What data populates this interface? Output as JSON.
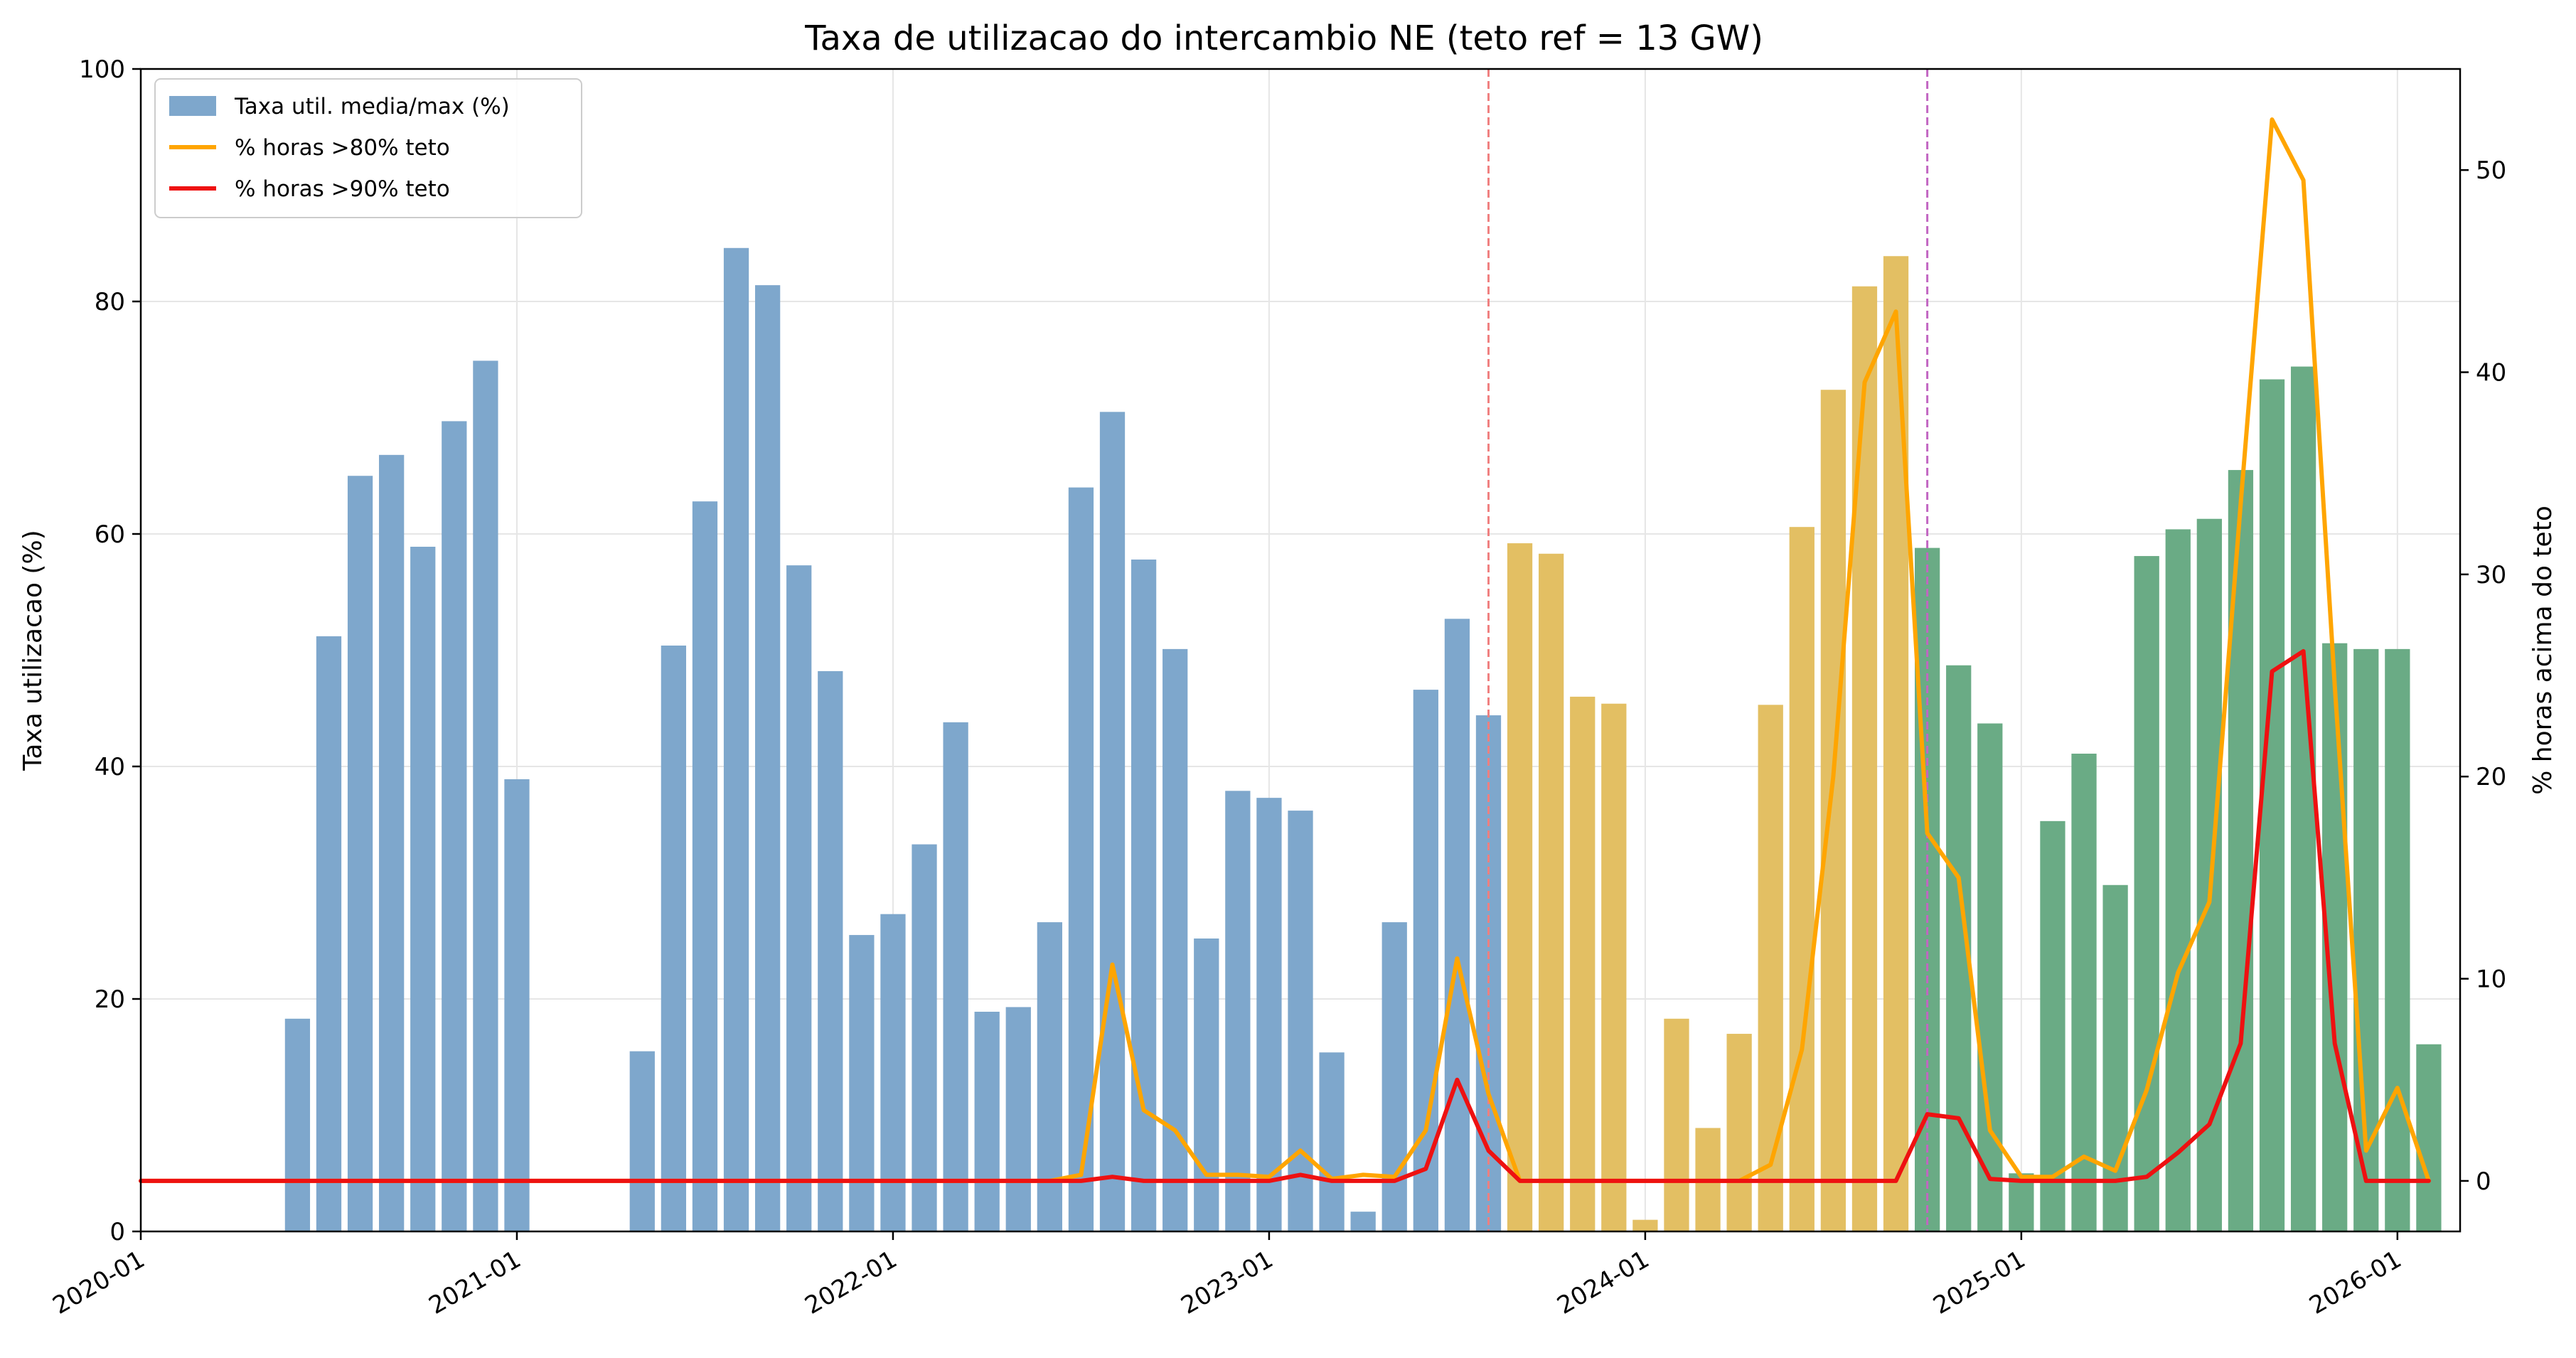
{
  "chart_data": {
    "type": "bar",
    "title": "Taxa de utilizacao do intercambio NE (teto ref = 13 GW)",
    "xlabel": "",
    "ylabel": "Taxa utilizacao (%)",
    "y2label": "% horas acima do teto",
    "x_range": [
      "2020-01",
      "2026-03"
    ],
    "ylim": [
      0,
      100
    ],
    "y2lim": [
      -2.5,
      55
    ],
    "grid": true,
    "legend_position": "top-left",
    "x_ticks": [
      "2020-01",
      "2021-01",
      "2022-01",
      "2023-01",
      "2024-01",
      "2025-01",
      "2026-01"
    ],
    "y_ticks": [
      0,
      20,
      40,
      60,
      80,
      100
    ],
    "y2_ticks": [
      0,
      10,
      20,
      30,
      40,
      50
    ],
    "vlines": [
      {
        "x": "2023-08",
        "color": "#f08080"
      },
      {
        "x": "2024-10",
        "color": "#c266c2"
      }
    ],
    "groups": [
      {
        "name": "blue",
        "color": "#7ea7cc"
      },
      {
        "name": "gold",
        "color": "#e3bf63"
      },
      {
        "name": "green",
        "color": "#6aab85"
      }
    ],
    "series": [
      {
        "name": "Taxa util. media/max (%)",
        "kind": "bar",
        "axis": "left",
        "color": "#7ea7cc",
        "x": [
          "2020-06",
          "2020-07",
          "2020-08",
          "2020-09",
          "2020-10",
          "2020-11",
          "2020-12",
          "2021-01",
          "2021-05",
          "2021-06",
          "2021-07",
          "2021-08",
          "2021-09",
          "2021-10",
          "2021-11",
          "2021-12",
          "2022-01",
          "2022-02",
          "2022-03",
          "2022-04",
          "2022-05",
          "2022-06",
          "2022-07",
          "2022-08",
          "2022-09",
          "2022-10",
          "2022-11",
          "2022-12",
          "2023-01",
          "2023-02",
          "2023-03",
          "2023-04",
          "2023-05",
          "2023-06",
          "2023-07",
          "2023-08",
          "2023-09",
          "2023-10",
          "2023-11",
          "2023-12",
          "2024-01",
          "2024-02",
          "2024-03",
          "2024-04",
          "2024-05",
          "2024-06",
          "2024-07",
          "2024-08",
          "2024-09",
          "2024-10",
          "2024-11",
          "2024-12",
          "2025-01",
          "2025-02",
          "2025-03",
          "2025-04",
          "2025-05",
          "2025-06",
          "2025-07",
          "2025-08",
          "2025-09",
          "2025-10",
          "2025-11",
          "2025-12",
          "2026-01",
          "2026-02"
        ],
        "values": [
          18.3,
          51.2,
          65.0,
          66.8,
          58.9,
          69.7,
          74.9,
          38.9,
          15.5,
          50.4,
          62.8,
          84.6,
          81.4,
          57.3,
          48.2,
          25.5,
          27.3,
          33.3,
          43.8,
          18.9,
          19.3,
          26.6,
          64.0,
          70.5,
          57.8,
          50.1,
          25.2,
          37.9,
          37.3,
          36.2,
          15.4,
          1.7,
          26.6,
          46.6,
          52.7,
          44.4,
          59.2,
          58.3,
          46.0,
          45.4,
          1.0,
          18.3,
          8.9,
          17.0,
          45.3,
          60.6,
          72.4,
          81.3,
          83.9,
          58.8,
          48.7,
          43.7,
          5.0,
          35.3,
          41.1,
          29.8,
          58.1,
          60.4,
          61.3,
          65.5,
          73.3,
          74.4,
          50.6,
          50.1,
          50.1,
          16.1
        ],
        "groups": [
          "blue",
          "blue",
          "blue",
          "blue",
          "blue",
          "blue",
          "blue",
          "blue",
          "blue",
          "blue",
          "blue",
          "blue",
          "blue",
          "blue",
          "blue",
          "blue",
          "blue",
          "blue",
          "blue",
          "blue",
          "blue",
          "blue",
          "blue",
          "blue",
          "blue",
          "blue",
          "blue",
          "blue",
          "blue",
          "blue",
          "blue",
          "blue",
          "blue",
          "blue",
          "blue",
          "blue",
          "gold",
          "gold",
          "gold",
          "gold",
          "gold",
          "gold",
          "gold",
          "gold",
          "gold",
          "gold",
          "gold",
          "gold",
          "gold",
          "green",
          "green",
          "green",
          "green",
          "green",
          "green",
          "green",
          "green",
          "green",
          "green",
          "green",
          "green",
          "green",
          "green",
          "green",
          "green",
          "green"
        ]
      },
      {
        "name": "% horas >80% teto",
        "kind": "line",
        "axis": "right",
        "color": "#ffa500",
        "x": [
          "2020-01",
          "2020-06",
          "2021-01",
          "2021-05",
          "2022-01",
          "2022-06",
          "2022-07",
          "2022-08",
          "2022-09",
          "2022-10",
          "2022-11",
          "2022-12",
          "2023-01",
          "2023-02",
          "2023-03",
          "2023-04",
          "2023-05",
          "2023-06",
          "2023-07",
          "2023-08",
          "2023-09",
          "2024-04",
          "2024-05",
          "2024-06",
          "2024-07",
          "2024-08",
          "2024-09",
          "2024-10",
          "2024-11",
          "2024-12",
          "2025-01",
          "2025-02",
          "2025-03",
          "2025-04",
          "2025-05",
          "2025-06",
          "2025-07",
          "2025-08",
          "2025-09",
          "2025-10",
          "2025-11",
          "2025-12",
          "2026-01",
          "2026-02"
        ],
        "values": [
          0,
          0,
          0,
          0,
          0,
          0,
          0.3,
          10.7,
          3.5,
          2.5,
          0.3,
          0.3,
          0.2,
          1.5,
          0.1,
          0.3,
          0.2,
          2.5,
          11.0,
          4.3,
          0,
          0,
          0.8,
          6.5,
          20.0,
          39.5,
          43.0,
          17.2,
          15.0,
          2.5,
          0.2,
          0.2,
          1.2,
          0.5,
          4.5,
          10.3,
          13.8,
          33.5,
          52.5,
          49.5,
          24.5,
          1.5,
          4.6,
          0
        ]
      },
      {
        "name": "% horas >90% teto",
        "kind": "line",
        "axis": "right",
        "color": "#ee1111",
        "x": [
          "2020-01",
          "2020-06",
          "2021-01",
          "2021-05",
          "2022-01",
          "2022-06",
          "2022-07",
          "2022-08",
          "2022-09",
          "2022-10",
          "2022-11",
          "2022-12",
          "2023-01",
          "2023-02",
          "2023-03",
          "2023-04",
          "2023-05",
          "2023-06",
          "2023-07",
          "2023-08",
          "2023-09",
          "2024-04",
          "2024-05",
          "2024-06",
          "2024-07",
          "2024-08",
          "2024-09",
          "2024-10",
          "2024-11",
          "2024-12",
          "2025-01",
          "2025-02",
          "2025-03",
          "2025-04",
          "2025-05",
          "2025-06",
          "2025-07",
          "2025-08",
          "2025-09",
          "2025-10",
          "2025-11",
          "2025-12",
          "2026-01",
          "2026-02"
        ],
        "values": [
          0,
          0,
          0,
          0,
          0,
          0,
          0,
          0.2,
          0,
          0,
          0,
          0,
          0,
          0.3,
          0,
          0,
          0,
          0.6,
          5.0,
          1.5,
          0,
          0,
          0,
          0,
          0,
          0,
          0,
          3.3,
          3.1,
          0.1,
          0,
          0,
          0,
          0,
          0.2,
          1.4,
          2.8,
          6.8,
          25.2,
          26.2,
          6.8,
          0,
          0,
          0
        ]
      }
    ]
  }
}
